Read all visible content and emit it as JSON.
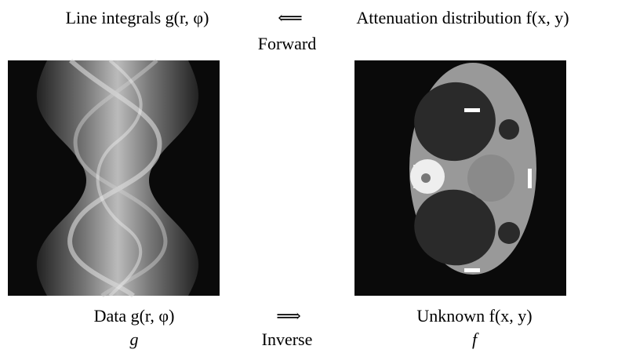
{
  "top": {
    "left_label": "Line integrals g(r, φ)",
    "arrow": "⟸",
    "right_label": "Attenuation distribution f(x, y)",
    "arrow_caption": "Forward"
  },
  "bottom": {
    "left_label": "Data g(r, φ)",
    "left_symbol": "g",
    "arrow": "⟹",
    "arrow_caption": "Inverse",
    "right_label": "Unknown f(x, y)",
    "right_symbol": "f"
  }
}
